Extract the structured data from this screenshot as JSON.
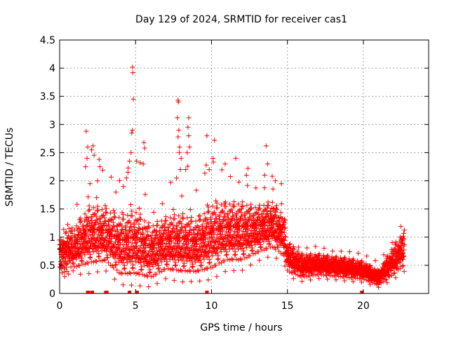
{
  "chart_data": {
    "type": "scatter",
    "title": "Day 129 of 2024, SRMTID for receiver cas1",
    "xlabel": "GPS time / hours",
    "ylabel": "SRMTID / TECUs",
    "xlim": [
      0,
      24.3
    ],
    "ylim": [
      0,
      4.5
    ],
    "xticks": [
      0,
      5,
      10,
      15,
      20
    ],
    "yticks": [
      0,
      0.5,
      1,
      1.5,
      2,
      2.5,
      3,
      3.5,
      4,
      4.5
    ],
    "grid": true,
    "marker": "plus",
    "series_color": "#ff0000",
    "envelope": [
      {
        "x": 0.0,
        "median": 0.7,
        "spread": 0.28,
        "high": 1.1
      },
      {
        "x": 1.0,
        "median": 0.75,
        "spread": 0.35,
        "high": 1.5
      },
      {
        "x": 2.0,
        "median": 0.95,
        "spread": 0.5,
        "high": 2.85
      },
      {
        "x": 3.0,
        "median": 0.95,
        "spread": 0.45,
        "high": 2.3
      },
      {
        "x": 4.0,
        "median": 0.75,
        "spread": 0.5,
        "high": 2.2
      },
      {
        "x": 5.0,
        "median": 0.8,
        "spread": 0.55,
        "high": 2.7
      },
      {
        "x": 6.0,
        "median": 0.65,
        "spread": 0.45,
        "high": 1.5
      },
      {
        "x": 7.0,
        "median": 0.8,
        "spread": 0.45,
        "high": 1.8
      },
      {
        "x": 8.0,
        "median": 0.8,
        "spread": 0.5,
        "high": 2.9
      },
      {
        "x": 9.0,
        "median": 0.75,
        "spread": 0.45,
        "high": 2.0
      },
      {
        "x": 10.0,
        "median": 0.9,
        "spread": 0.55,
        "high": 2.6
      },
      {
        "x": 11.0,
        "median": 1.0,
        "spread": 0.5,
        "high": 2.3
      },
      {
        "x": 12.0,
        "median": 1.0,
        "spread": 0.5,
        "high": 2.1
      },
      {
        "x": 13.0,
        "median": 1.05,
        "spread": 0.4,
        "high": 2.0
      },
      {
        "x": 14.0,
        "median": 1.15,
        "spread": 0.4,
        "high": 2.0
      },
      {
        "x": 14.8,
        "median": 0.95,
        "spread": 0.35,
        "high": 1.6
      },
      {
        "x": 15.0,
        "median": 0.6,
        "spread": 0.25,
        "high": 0.95
      },
      {
        "x": 16.0,
        "median": 0.45,
        "spread": 0.2,
        "high": 0.85
      },
      {
        "x": 17.0,
        "median": 0.48,
        "spread": 0.18,
        "high": 0.9
      },
      {
        "x": 18.0,
        "median": 0.45,
        "spread": 0.17,
        "high": 0.8
      },
      {
        "x": 19.0,
        "median": 0.42,
        "spread": 0.17,
        "high": 0.8
      },
      {
        "x": 20.0,
        "median": 0.38,
        "spread": 0.15,
        "high": 0.75
      },
      {
        "x": 21.0,
        "median": 0.25,
        "spread": 0.12,
        "high": 0.6
      },
      {
        "x": 22.0,
        "median": 0.55,
        "spread": 0.25,
        "high": 1.0
      },
      {
        "x": 22.7,
        "median": 0.75,
        "spread": 0.3,
        "high": 1.4
      }
    ],
    "spikes": [
      {
        "x": 1.75,
        "y": 2.88
      },
      {
        "x": 1.85,
        "y": 2.6
      },
      {
        "x": 1.8,
        "y": 2.4
      },
      {
        "x": 2.1,
        "y": 2.55
      },
      {
        "x": 2.2,
        "y": 2.62
      },
      {
        "x": 2.0,
        "y": 1.95
      },
      {
        "x": 2.6,
        "y": 2.38
      },
      {
        "x": 2.65,
        "y": 2.25
      },
      {
        "x": 2.5,
        "y": 2.0
      },
      {
        "x": 3.7,
        "y": 1.8
      },
      {
        "x": 4.2,
        "y": 1.9
      },
      {
        "x": 4.8,
        "y": 4.02
      },
      {
        "x": 4.82,
        "y": 3.92
      },
      {
        "x": 4.85,
        "y": 3.45
      },
      {
        "x": 4.8,
        "y": 2.9
      },
      {
        "x": 4.75,
        "y": 2.85
      },
      {
        "x": 4.7,
        "y": 2.5
      },
      {
        "x": 4.6,
        "y": 2.35
      },
      {
        "x": 4.5,
        "y": 2.15
      },
      {
        "x": 4.4,
        "y": 2.05
      },
      {
        "x": 5.3,
        "y": 2.32
      },
      {
        "x": 5.55,
        "y": 2.68
      },
      {
        "x": 5.6,
        "y": 2.58
      },
      {
        "x": 5.5,
        "y": 2.3
      },
      {
        "x": 7.8,
        "y": 3.43
      },
      {
        "x": 7.82,
        "y": 3.4
      },
      {
        "x": 7.75,
        "y": 3.12
      },
      {
        "x": 7.85,
        "y": 2.9
      },
      {
        "x": 7.8,
        "y": 2.78
      },
      {
        "x": 7.9,
        "y": 2.6
      },
      {
        "x": 8.0,
        "y": 2.4
      },
      {
        "x": 7.95,
        "y": 2.2
      },
      {
        "x": 7.7,
        "y": 2.05
      },
      {
        "x": 8.5,
        "y": 3.12
      },
      {
        "x": 8.45,
        "y": 2.95
      },
      {
        "x": 8.5,
        "y": 2.8
      },
      {
        "x": 8.55,
        "y": 2.6
      },
      {
        "x": 8.4,
        "y": 2.5
      },
      {
        "x": 8.3,
        "y": 2.2
      },
      {
        "x": 9.7,
        "y": 2.8
      },
      {
        "x": 9.65,
        "y": 2.28
      },
      {
        "x": 9.85,
        "y": 2.2
      },
      {
        "x": 10.2,
        "y": 2.72
      },
      {
        "x": 10.1,
        "y": 2.4
      },
      {
        "x": 10.9,
        "y": 2.3
      },
      {
        "x": 11.6,
        "y": 2.4
      },
      {
        "x": 12.4,
        "y": 2.22
      },
      {
        "x": 12.3,
        "y": 2.1
      },
      {
        "x": 13.6,
        "y": 2.62
      },
      {
        "x": 13.7,
        "y": 2.3
      },
      {
        "x": 13.5,
        "y": 2.1
      },
      {
        "x": 14.0,
        "y": 2.08
      },
      {
        "x": 14.2,
        "y": 2.0
      },
      {
        "x": 14.6,
        "y": 1.95
      }
    ],
    "zeros": [
      1.85,
      1.9,
      2.15,
      3.05,
      3.1,
      4.6,
      5.1,
      9.7,
      19.9
    ]
  }
}
